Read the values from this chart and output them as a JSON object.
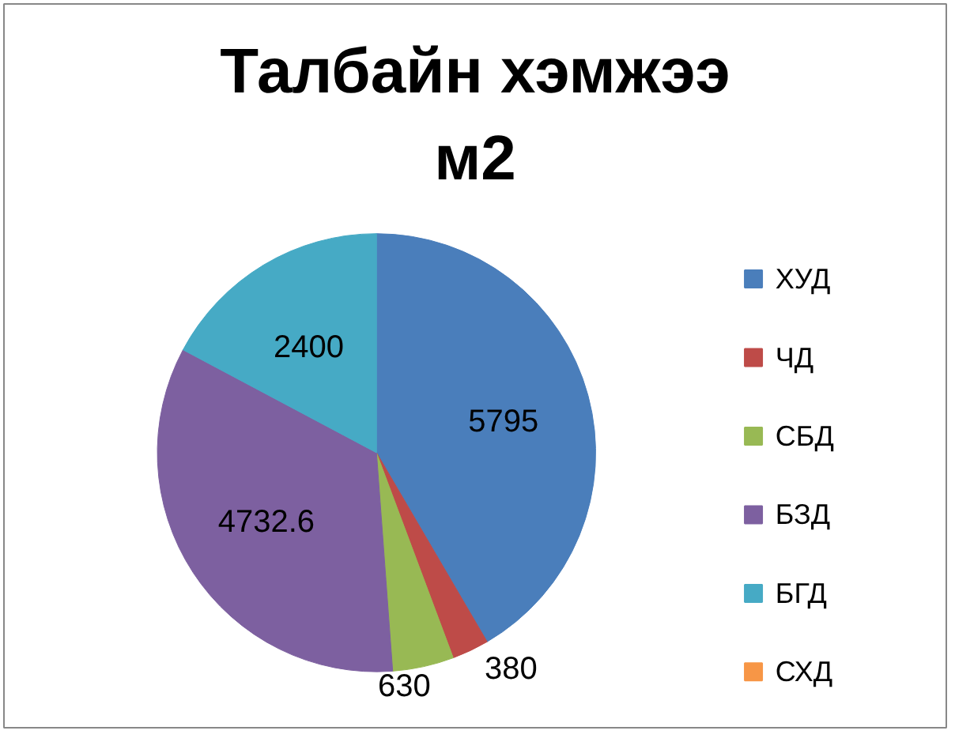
{
  "chart_data": {
    "type": "pie",
    "title": "Талбайн хэмжээ м2",
    "categories": [
      "ХУД",
      "ЧД",
      "СБД",
      "БЗД",
      "БГД",
      "СХД"
    ],
    "values": [
      5795,
      380,
      630,
      4732.6,
      2400,
      null
    ],
    "colors": [
      "#4a7ebb",
      "#be4b48",
      "#98b954",
      "#7d60a0",
      "#46aac5",
      "#f79646"
    ],
    "data_labels": true,
    "legend": "right"
  }
}
